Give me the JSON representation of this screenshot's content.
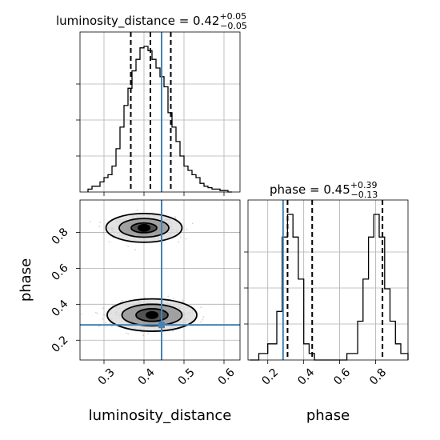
{
  "chart_data": {
    "type": "corner",
    "parameters": [
      "luminosity_distance",
      "phase"
    ],
    "axis_labels": {
      "x_left": "luminosity_distance",
      "x_right": "phase",
      "y_lower": "phase"
    },
    "ranges": {
      "luminosity_distance": [
        0.24,
        0.64
      ],
      "phase": [
        0.09,
        0.98
      ]
    },
    "ticks": {
      "luminosity_distance": [
        "0.3",
        "0.4",
        "0.5",
        "0.6"
      ],
      "phase": [
        "0.2",
        "0.4",
        "0.6",
        "0.8"
      ]
    },
    "titles": [
      {
        "param": "luminosity_distance",
        "main": "luminosity_distance = 0.42",
        "plus": "+0.05",
        "minus": "−0.05"
      },
      {
        "param": "phase",
        "main": "phase = 0.45",
        "plus": "+0.39",
        "minus": "−0.13"
      }
    ],
    "truths": {
      "luminosity_distance": 0.444,
      "phase": 0.285
    },
    "quantiles": {
      "luminosity_distance": [
        0.367,
        0.416,
        0.467
      ],
      "phase": [
        0.31,
        0.447,
        0.838
      ]
    },
    "histogram_luminosity_distance": {
      "edges": [
        0.26,
        0.27,
        0.28,
        0.29,
        0.3,
        0.31,
        0.32,
        0.33,
        0.34,
        0.35,
        0.36,
        0.37,
        0.38,
        0.39,
        0.4,
        0.41,
        0.42,
        0.43,
        0.44,
        0.45,
        0.46,
        0.47,
        0.48,
        0.49,
        0.5,
        0.51,
        0.52,
        0.53,
        0.54,
        0.55,
        0.56,
        0.57,
        0.58,
        0.59,
        0.6,
        0.61,
        0.62
      ],
      "counts": [
        2,
        4,
        4,
        7,
        10,
        12,
        18,
        30,
        45,
        60,
        72,
        84,
        92,
        100,
        101,
        98,
        92,
        86,
        80,
        73,
        55,
        45,
        35,
        25,
        18,
        15,
        12,
        10,
        6,
        4,
        3,
        2,
        2,
        1,
        1,
        0
      ]
    },
    "histogram_phase": {
      "edges": [
        0.1,
        0.15,
        0.2,
        0.25,
        0.28,
        0.31,
        0.34,
        0.37,
        0.4,
        0.43,
        0.46,
        0.52,
        0.58,
        0.64,
        0.7,
        0.73,
        0.76,
        0.79,
        0.82,
        0.85,
        0.88,
        0.91,
        0.94,
        0.98
      ],
      "counts": [
        0,
        2,
        5,
        15,
        38,
        45,
        38,
        25,
        5,
        2,
        0,
        0,
        0,
        2,
        12,
        25,
        38,
        45,
        38,
        22,
        12,
        5,
        2
      ]
    },
    "scatter_modes": [
      {
        "luminosity_distance": 0.4,
        "phase": 0.825,
        "spread": [
          0.07,
          0.055
        ]
      },
      {
        "luminosity_distance": 0.42,
        "phase": 0.34,
        "spread": [
          0.085,
          0.065
        ]
      }
    ],
    "contour_levels": [
      {
        "mode": 0,
        "rx": 0.095,
        "ry": 0.08
      },
      {
        "mode": 0,
        "rx": 0.062,
        "ry": 0.052
      },
      {
        "mode": 0,
        "rx": 0.032,
        "ry": 0.027
      },
      {
        "mode": 1,
        "rx": 0.112,
        "ry": 0.09
      },
      {
        "mode": 1,
        "rx": 0.075,
        "ry": 0.06
      },
      {
        "mode": 1,
        "rx": 0.04,
        "ry": 0.035
      }
    ],
    "grid": true
  }
}
